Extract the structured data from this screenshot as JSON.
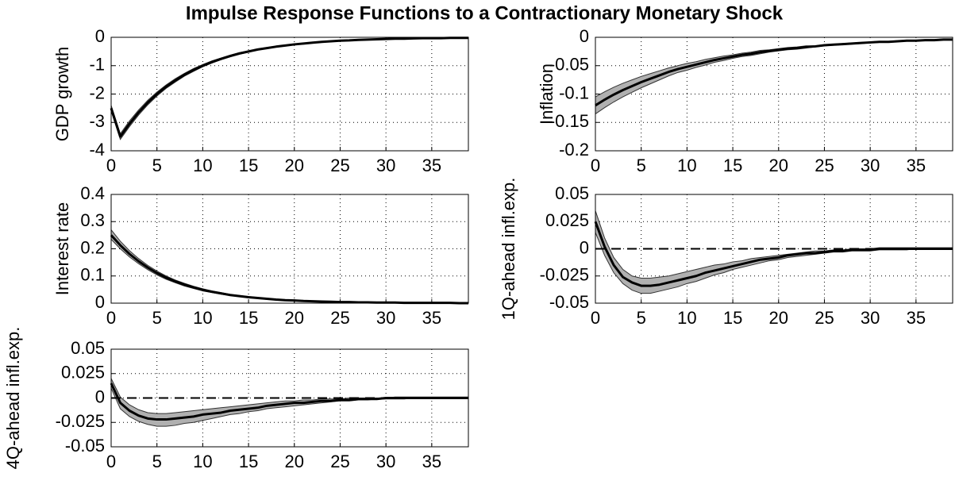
{
  "title": "Impulse Response Functions to a Contractionary Monetary Shock",
  "chart_data": [
    {
      "type": "line",
      "ylabel": "GDP growth",
      "x": [
        0,
        1,
        2,
        3,
        4,
        5,
        6,
        7,
        8,
        9,
        10,
        11,
        12,
        13,
        14,
        15,
        16,
        17,
        18,
        19,
        20,
        21,
        22,
        23,
        24,
        25,
        26,
        27,
        28,
        29,
        30,
        31,
        32,
        33,
        34,
        35,
        36,
        37,
        38,
        39
      ],
      "xlim": [
        0,
        39
      ],
      "xticks": [
        0,
        5,
        10,
        15,
        20,
        25,
        30,
        35
      ],
      "ylim": [
        -4,
        0
      ],
      "yticks": [
        -4,
        -3,
        -2,
        -1,
        0
      ],
      "grid": true,
      "color": "#000000",
      "values": [
        -2.5,
        -3.5,
        -3.05,
        -2.65,
        -2.3,
        -2.0,
        -1.74,
        -1.52,
        -1.32,
        -1.15,
        -1.0,
        -0.87,
        -0.76,
        -0.66,
        -0.57,
        -0.5,
        -0.43,
        -0.38,
        -0.33,
        -0.29,
        -0.25,
        -0.22,
        -0.19,
        -0.16,
        -0.14,
        -0.12,
        -0.11,
        -0.09,
        -0.08,
        -0.07,
        -0.06,
        -0.05,
        -0.05,
        -0.04,
        -0.03,
        -0.03,
        -0.03,
        -0.02,
        -0.02,
        -0.02
      ],
      "band": {
        "color": "#b0b0b0",
        "lower": [
          -2.6,
          -3.6,
          -3.15,
          -2.74,
          -2.38,
          -2.07,
          -1.8,
          -1.58,
          -1.37,
          -1.2,
          -1.04,
          -0.91,
          -0.79,
          -0.69,
          -0.6,
          -0.52,
          -0.45,
          -0.4,
          -0.35,
          -0.3,
          -0.26,
          -0.23,
          -0.2,
          -0.17,
          -0.15,
          -0.13,
          -0.11,
          -0.1,
          -0.08,
          -0.07,
          -0.06,
          -0.05,
          -0.05,
          -0.04,
          -0.04,
          -0.03,
          -0.03,
          -0.03,
          -0.02,
          -0.02
        ],
        "upper": [
          -2.4,
          -3.4,
          -2.95,
          -2.56,
          -2.22,
          -1.93,
          -1.68,
          -1.46,
          -1.27,
          -1.1,
          -0.96,
          -0.83,
          -0.73,
          -0.63,
          -0.54,
          -0.48,
          -0.41,
          -0.36,
          -0.31,
          -0.28,
          -0.24,
          -0.21,
          -0.18,
          -0.15,
          -0.13,
          -0.11,
          -0.1,
          -0.08,
          -0.07,
          -0.06,
          -0.05,
          -0.05,
          -0.04,
          -0.03,
          -0.03,
          -0.02,
          -0.02,
          -0.02,
          -0.01,
          -0.01
        ]
      }
    },
    {
      "type": "line",
      "ylabel": "Inflation",
      "x": [
        0,
        1,
        2,
        3,
        4,
        5,
        6,
        7,
        8,
        9,
        10,
        11,
        12,
        13,
        14,
        15,
        16,
        17,
        18,
        19,
        20,
        21,
        22,
        23,
        24,
        25,
        26,
        27,
        28,
        29,
        30,
        31,
        32,
        33,
        34,
        35,
        36,
        37,
        38,
        39
      ],
      "xlim": [
        0,
        39
      ],
      "xticks": [
        0,
        5,
        10,
        15,
        20,
        25,
        30,
        35
      ],
      "ylim": [
        -0.2,
        0
      ],
      "yticks": [
        -0.2,
        -0.15,
        -0.1,
        -0.05,
        0
      ],
      "grid": true,
      "color": "#000000",
      "values": [
        -0.12,
        -0.11,
        -0.101,
        -0.093,
        -0.086,
        -0.079,
        -0.073,
        -0.067,
        -0.061,
        -0.056,
        -0.052,
        -0.048,
        -0.044,
        -0.04,
        -0.037,
        -0.034,
        -0.031,
        -0.029,
        -0.026,
        -0.024,
        -0.022,
        -0.02,
        -0.019,
        -0.017,
        -0.016,
        -0.014,
        -0.013,
        -0.012,
        -0.011,
        -0.01,
        -0.009,
        -0.008,
        -0.008,
        -0.007,
        -0.006,
        -0.006,
        -0.005,
        -0.005,
        -0.004,
        -0.004
      ],
      "band": {
        "color": "#b0b0b0",
        "lower": [
          -0.135,
          -0.124,
          -0.114,
          -0.105,
          -0.097,
          -0.089,
          -0.082,
          -0.075,
          -0.068,
          -0.062,
          -0.058,
          -0.053,
          -0.049,
          -0.044,
          -0.041,
          -0.037,
          -0.034,
          -0.032,
          -0.029,
          -0.026,
          -0.024,
          -0.022,
          -0.021,
          -0.019,
          -0.017,
          -0.015,
          -0.014,
          -0.013,
          -0.012,
          -0.011,
          -0.01,
          -0.009,
          -0.008,
          -0.007,
          -0.007,
          -0.006,
          -0.005,
          -0.005,
          -0.004,
          -0.004
        ],
        "upper": [
          -0.105,
          -0.096,
          -0.088,
          -0.081,
          -0.075,
          -0.069,
          -0.064,
          -0.059,
          -0.054,
          -0.05,
          -0.046,
          -0.043,
          -0.039,
          -0.036,
          -0.033,
          -0.031,
          -0.028,
          -0.026,
          -0.023,
          -0.022,
          -0.02,
          -0.018,
          -0.017,
          -0.015,
          -0.015,
          -0.013,
          -0.012,
          -0.011,
          -0.01,
          -0.009,
          -0.008,
          -0.007,
          -0.007,
          -0.006,
          -0.005,
          -0.005,
          -0.004,
          -0.004,
          -0.003,
          -0.003
        ]
      }
    },
    {
      "type": "line",
      "ylabel": "Interest rate",
      "x": [
        0,
        1,
        2,
        3,
        4,
        5,
        6,
        7,
        8,
        9,
        10,
        11,
        12,
        13,
        14,
        15,
        16,
        17,
        18,
        19,
        20,
        21,
        22,
        23,
        24,
        25,
        26,
        27,
        28,
        29,
        30,
        31,
        32,
        33,
        34,
        35,
        36,
        37,
        38,
        39
      ],
      "xlim": [
        0,
        39
      ],
      "xticks": [
        0,
        5,
        10,
        15,
        20,
        25,
        30,
        35
      ],
      "ylim": [
        0,
        0.4
      ],
      "yticks": [
        0,
        0.1,
        0.2,
        0.3,
        0.4
      ],
      "grid": true,
      "color": "#000000",
      "values": [
        0.25,
        0.213,
        0.181,
        0.154,
        0.131,
        0.111,
        0.094,
        0.08,
        0.068,
        0.058,
        0.049,
        0.042,
        0.036,
        0.03,
        0.026,
        0.022,
        0.019,
        0.016,
        0.013,
        0.011,
        0.01,
        0.008,
        0.007,
        0.006,
        0.005,
        0.004,
        0.004,
        0.003,
        0.003,
        0.002,
        0.002,
        0.002,
        0.001,
        0.001,
        0.001,
        0.001,
        0.001,
        0.001,
        0,
        0
      ],
      "band": {
        "color": "#b0b0b0",
        "lower": [
          0.235,
          0.2,
          0.17,
          0.145,
          0.123,
          0.104,
          0.088,
          0.075,
          0.063,
          0.054,
          0.045,
          0.039,
          0.033,
          0.028,
          0.024,
          0.02,
          0.017,
          0.014,
          0.012,
          0.01,
          0.009,
          0.007,
          0.006,
          0.005,
          0.004,
          0.004,
          0.003,
          0.003,
          0.002,
          0.002,
          0.002,
          0.001,
          0.001,
          0.001,
          0.001,
          0,
          0,
          0,
          0,
          0
        ],
        "upper": [
          0.27,
          0.228,
          0.193,
          0.164,
          0.139,
          0.118,
          0.1,
          0.085,
          0.073,
          0.062,
          0.053,
          0.045,
          0.039,
          0.032,
          0.028,
          0.024,
          0.021,
          0.017,
          0.014,
          0.012,
          0.011,
          0.009,
          0.008,
          0.007,
          0.006,
          0.005,
          0.005,
          0.004,
          0.003,
          0.003,
          0.002,
          0.002,
          0.002,
          0.001,
          0.001,
          0.001,
          0.001,
          0.001,
          0.001,
          0.001
        ]
      }
    },
    {
      "type": "line",
      "ylabel": "1Q-ahead infl.exp.",
      "x": [
        0,
        1,
        2,
        3,
        4,
        5,
        6,
        7,
        8,
        9,
        10,
        11,
        12,
        13,
        14,
        15,
        16,
        17,
        18,
        19,
        20,
        21,
        22,
        23,
        24,
        25,
        26,
        27,
        28,
        29,
        30,
        31,
        32,
        33,
        34,
        35,
        36,
        37,
        38,
        39
      ],
      "xlim": [
        0,
        39
      ],
      "xticks": [
        0,
        5,
        10,
        15,
        20,
        25,
        30,
        35
      ],
      "ylim": [
        -0.05,
        0.05
      ],
      "yticks": [
        -0.05,
        -0.025,
        0,
        0.025,
        0.05
      ],
      "grid": true,
      "reference_line": 0,
      "color": "#000000",
      "values": [
        0.025,
        0.002,
        -0.015,
        -0.026,
        -0.031,
        -0.034,
        -0.034,
        -0.033,
        -0.031,
        -0.029,
        -0.027,
        -0.025,
        -0.022,
        -0.02,
        -0.018,
        -0.016,
        -0.014,
        -0.012,
        -0.01,
        -0.009,
        -0.008,
        -0.006,
        -0.005,
        -0.004,
        -0.004,
        -0.003,
        -0.002,
        -0.002,
        -0.001,
        -0.001,
        -0.001,
        0,
        0,
        0,
        0,
        0,
        0,
        0,
        0,
        0
      ],
      "band": {
        "color": "#b0b0b0",
        "lower": [
          0.015,
          -0.006,
          -0.022,
          -0.032,
          -0.038,
          -0.041,
          -0.041,
          -0.039,
          -0.037,
          -0.035,
          -0.032,
          -0.03,
          -0.027,
          -0.024,
          -0.022,
          -0.019,
          -0.017,
          -0.015,
          -0.013,
          -0.011,
          -0.01,
          -0.008,
          -0.007,
          -0.006,
          -0.005,
          -0.004,
          -0.003,
          -0.003,
          -0.002,
          -0.002,
          -0.002,
          -0.001,
          -0.001,
          -0.001,
          -0.001,
          0,
          0,
          0,
          0,
          0
        ],
        "upper": [
          0.035,
          0.01,
          -0.008,
          -0.019,
          -0.025,
          -0.027,
          -0.027,
          -0.026,
          -0.025,
          -0.023,
          -0.021,
          -0.019,
          -0.017,
          -0.015,
          -0.014,
          -0.012,
          -0.011,
          -0.009,
          -0.008,
          -0.007,
          -0.006,
          -0.005,
          -0.004,
          -0.003,
          -0.002,
          -0.002,
          -0.001,
          -0.001,
          0,
          0,
          0,
          0.001,
          0.001,
          0.001,
          0.001,
          0.001,
          0.001,
          0.001,
          0.001,
          0.001
        ]
      }
    },
    {
      "type": "line",
      "ylabel": "4Q-ahead infl.exp.",
      "x": [
        0,
        1,
        2,
        3,
        4,
        5,
        6,
        7,
        8,
        9,
        10,
        11,
        12,
        13,
        14,
        15,
        16,
        17,
        18,
        19,
        20,
        21,
        22,
        23,
        24,
        25,
        26,
        27,
        28,
        29,
        30,
        31,
        32,
        33,
        34,
        35,
        36,
        37,
        38,
        39
      ],
      "xlim": [
        0,
        39
      ],
      "xticks": [
        0,
        5,
        10,
        15,
        20,
        25,
        30,
        35
      ],
      "ylim": [
        -0.05,
        0.05
      ],
      "yticks": [
        -0.05,
        -0.025,
        0,
        0.025,
        0.05
      ],
      "grid": true,
      "reference_line": 0,
      "color": "#000000",
      "values": [
        0.015,
        -0.005,
        -0.013,
        -0.018,
        -0.021,
        -0.022,
        -0.022,
        -0.021,
        -0.02,
        -0.019,
        -0.017,
        -0.016,
        -0.015,
        -0.013,
        -0.012,
        -0.011,
        -0.01,
        -0.008,
        -0.007,
        -0.006,
        -0.005,
        -0.005,
        -0.004,
        -0.003,
        -0.003,
        -0.002,
        -0.002,
        -0.001,
        -0.001,
        -0.001,
        0,
        0,
        0,
        0,
        0,
        0,
        0,
        0,
        0,
        0
      ],
      "band": {
        "color": "#b0b0b0",
        "lower": [
          0.01,
          -0.011,
          -0.019,
          -0.024,
          -0.027,
          -0.029,
          -0.029,
          -0.028,
          -0.026,
          -0.025,
          -0.023,
          -0.021,
          -0.019,
          -0.017,
          -0.016,
          -0.014,
          -0.013,
          -0.011,
          -0.01,
          -0.009,
          -0.008,
          -0.007,
          -0.006,
          -0.005,
          -0.004,
          -0.003,
          -0.003,
          -0.002,
          -0.002,
          -0.001,
          -0.001,
          -0.001,
          -0.001,
          0,
          0,
          0,
          0,
          0,
          0,
          0
        ],
        "upper": [
          0.02,
          0.001,
          -0.007,
          -0.012,
          -0.015,
          -0.016,
          -0.016,
          -0.015,
          -0.014,
          -0.013,
          -0.012,
          -0.011,
          -0.01,
          -0.009,
          -0.008,
          -0.007,
          -0.006,
          -0.005,
          -0.004,
          -0.003,
          -0.003,
          -0.002,
          -0.002,
          -0.001,
          -0.001,
          -0.001,
          0,
          0,
          0,
          0,
          0,
          0.001,
          0.001,
          0.001,
          0.001,
          0.001,
          0.001,
          0.001,
          0.001,
          0.001
        ]
      }
    }
  ]
}
